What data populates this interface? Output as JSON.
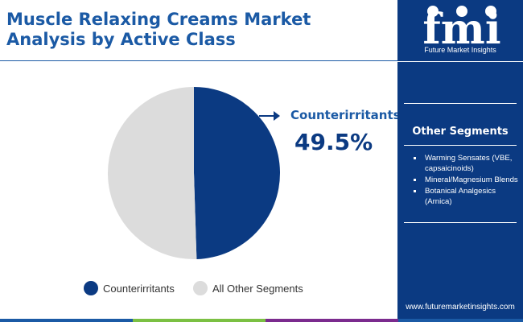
{
  "header": {
    "title_line1": "Muscle Relaxing Creams Market",
    "title_line2": "Analysis by Active Class"
  },
  "brand": {
    "logo_letters": "fmi",
    "name": "Future Market Insights",
    "url": "www.futuremarketinsights.com"
  },
  "sidebar": {
    "heading": "Other Segments",
    "items": [
      "Warming Sensates (VBE, capsaicinoids)",
      "Mineral/Magnesium Blends",
      "Botanical Analgesics (Arnica)"
    ]
  },
  "callout": {
    "label": "Counterirritants",
    "value": "49.5%"
  },
  "chart_data": {
    "type": "pie",
    "title": "Muscle Relaxing Creams Market Analysis by Active Class",
    "categories": [
      "Counterirritants",
      "All Other Segments"
    ],
    "values": [
      49.5,
      50.5
    ],
    "colors": [
      "#0b3a82",
      "#dcdcdc"
    ],
    "legend": {
      "position": "bottom",
      "entries": [
        "Counterirritants",
        "All Other Segments"
      ]
    },
    "annotations": [
      {
        "label": "Counterirritants",
        "text": "49.5%"
      }
    ]
  },
  "colors": {
    "primary": "#0b3a82",
    "title": "#1b5aa5",
    "other": "#dcdcdc",
    "bottom_bar": [
      "#1b5aa5",
      "#7bc043",
      "#7b2b8e",
      "#1b5aa5"
    ]
  }
}
